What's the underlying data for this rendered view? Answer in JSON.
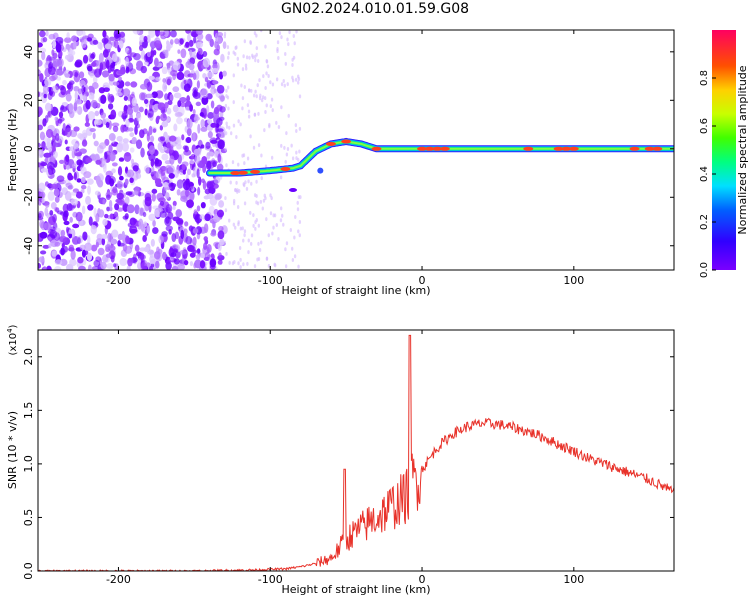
{
  "figure": {
    "title": "GN02.2024.010.01.59.G08"
  },
  "chart_data": [
    {
      "type": "heatmap",
      "xlabel": "Height of straight line (km)",
      "ylabel": "Frequency (Hz)",
      "xlim": [
        -253,
        166
      ],
      "ylim": [
        -50,
        49
      ],
      "xticks": [
        -200,
        -100,
        0,
        100
      ],
      "yticks": [
        -40,
        -20,
        0,
        20,
        40
      ],
      "colorbar": {
        "label": "Normalized spectral amplitude",
        "range": [
          0,
          1
        ],
        "ticks": [
          "0.0",
          "0.2",
          "0.4",
          "0.6",
          "0.8"
        ],
        "tick_values": [
          0.0,
          0.2,
          0.4,
          0.6,
          0.8
        ],
        "colormap": "rainbow-hsv"
      },
      "ridge": {
        "description_points_x": [
          -140,
          -120,
          -100,
          -85,
          -80,
          -70,
          -60,
          -50,
          -40,
          -30,
          -20,
          0,
          20,
          40,
          60,
          80,
          100,
          120,
          140,
          166
        ],
        "description_points_y": [
          -10,
          -10,
          -9,
          -8,
          -7,
          -1,
          2,
          3,
          2,
          0,
          0,
          0,
          0,
          0,
          0,
          0,
          0,
          0,
          0,
          0
        ]
      },
      "noise_region_x": [
        -253,
        -130
      ]
    },
    {
      "type": "line",
      "xlabel": "Height of straight line (km)",
      "ylabel": "SNR (10 * v/v)",
      "y_multiplier": "(x10",
      "y_multiplier_exp": "4",
      "y_multiplier_close": ")",
      "xlim": [
        -253,
        166
      ],
      "ylim": [
        0,
        2.25
      ],
      "xticks": [
        -200,
        -100,
        0,
        100
      ],
      "yticks": [
        0.0,
        0.5,
        1.0,
        1.5,
        2.0
      ],
      "ytick_labels": [
        "0.0",
        "0.5",
        "1.0",
        "1.5",
        "2.0"
      ],
      "color": "#e8322a",
      "series": [
        {
          "x": [
            -253,
            -200,
            -150,
            -110,
            -90,
            -80,
            -70,
            -60,
            -55,
            -50,
            -45,
            -40,
            -35,
            -30,
            -25,
            -20,
            -15,
            -10,
            -8,
            -5,
            0,
            10,
            20,
            30,
            40,
            50,
            60,
            70,
            80,
            90,
            100,
            110,
            120,
            130,
            140,
            150,
            160,
            166
          ],
          "y": [
            0.0,
            0.0,
            0.0,
            0.01,
            0.02,
            0.04,
            0.07,
            0.12,
            0.2,
            0.3,
            0.35,
            0.4,
            0.45,
            0.5,
            0.55,
            0.6,
            0.65,
            0.7,
            0.8,
            0.85,
            0.95,
            1.15,
            1.28,
            1.35,
            1.38,
            1.37,
            1.34,
            1.3,
            1.25,
            1.18,
            1.12,
            1.05,
            1.0,
            0.95,
            0.9,
            0.85,
            0.78,
            0.73
          ]
        }
      ],
      "spikes": [
        {
          "x": -51,
          "y": 0.95
        },
        {
          "x": -8,
          "y": 2.2
        }
      ]
    }
  ]
}
